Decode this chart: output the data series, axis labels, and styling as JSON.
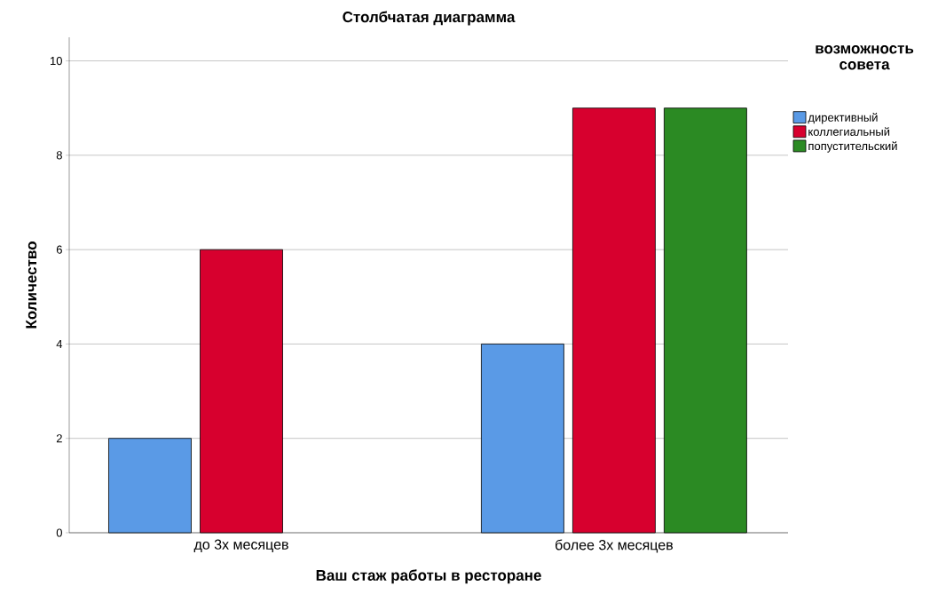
{
  "chart_data": {
    "type": "bar",
    "title": "Столбчатая диаграмма",
    "xlabel": "Ваш стаж работы в ресторане",
    "ylabel": "Количество",
    "legend_title": "возможность совета",
    "categories": [
      "до 3х месяцев",
      "более 3х месяцев"
    ],
    "series": [
      {
        "name": "директивный",
        "color": "#5a9ae6",
        "values": [
          2,
          4
        ]
      },
      {
        "name": "коллегиальный",
        "color": "#d7002e",
        "values": [
          6,
          9
        ]
      },
      {
        "name": "попустительский",
        "color": "#2b8a23",
        "values": [
          null,
          9
        ]
      }
    ],
    "ylim": [
      0,
      10.5
    ],
    "yticks": [
      0,
      2,
      4,
      6,
      8,
      10
    ],
    "grid": "y",
    "legend": "top right"
  }
}
